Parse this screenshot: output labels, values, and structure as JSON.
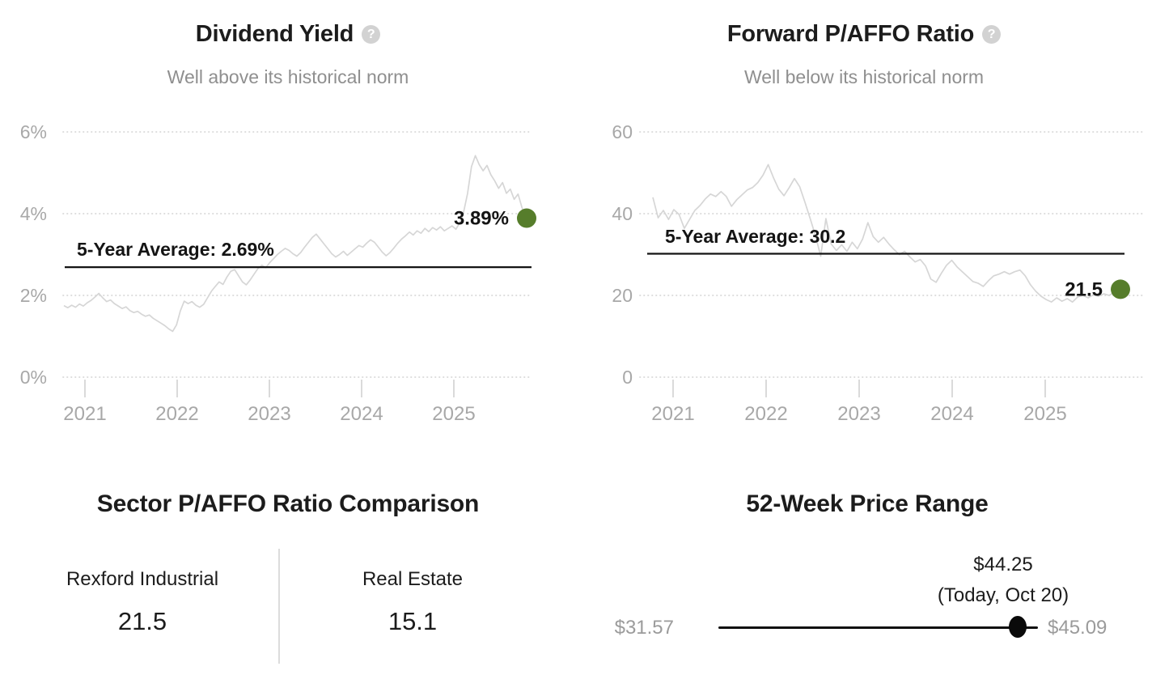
{
  "icons": {
    "help": "?"
  },
  "colors": {
    "accent_green": "#567d2b",
    "series_line": "#d6d6d6",
    "grid_line": "#d7d7d7",
    "axis_text": "#a8a8a8",
    "average_line": "#141414"
  },
  "chart_data": [
    {
      "type": "line",
      "title": "Dividend Yield",
      "subtitle": "Well above its historical norm",
      "x_range": [
        2020.78,
        2025.78
      ],
      "x_tick_labels": [
        "2021",
        "2022",
        "2023",
        "2024",
        "2025"
      ],
      "y_tick_values": [
        0,
        2,
        4,
        6
      ],
      "y_tick_labels": [
        "0%",
        "2%",
        "4%",
        "6%"
      ],
      "ylim": [
        0,
        6.65
      ],
      "grid": "dotted-horizontal",
      "legend": "none",
      "average": {
        "label": "5-Year Average: 2.69%",
        "value": 2.69
      },
      "current": {
        "label": "3.89%",
        "value": 3.89
      },
      "series": [
        {
          "name": "Dividend Yield (%)",
          "values": [
            1.75,
            1.7,
            1.76,
            1.71,
            1.79,
            1.74,
            1.82,
            1.88,
            1.96,
            2.05,
            1.94,
            1.85,
            1.89,
            1.8,
            1.74,
            1.68,
            1.72,
            1.63,
            1.58,
            1.61,
            1.54,
            1.49,
            1.52,
            1.44,
            1.38,
            1.32,
            1.26,
            1.18,
            1.12,
            1.28,
            1.62,
            1.86,
            1.8,
            1.85,
            1.76,
            1.71,
            1.78,
            1.94,
            2.1,
            2.22,
            2.33,
            2.27,
            2.45,
            2.59,
            2.63,
            2.48,
            2.33,
            2.26,
            2.38,
            2.52,
            2.66,
            2.74,
            2.68,
            2.8,
            2.9,
            3.0,
            3.08,
            3.15,
            3.1,
            3.02,
            2.96,
            3.05,
            3.18,
            3.3,
            3.42,
            3.5,
            3.38,
            3.26,
            3.14,
            3.02,
            2.94,
            3.0,
            3.08,
            2.98,
            3.06,
            3.14,
            3.22,
            3.18,
            3.28,
            3.36,
            3.3,
            3.18,
            3.06,
            2.97,
            3.05,
            3.16,
            3.28,
            3.38,
            3.46,
            3.55,
            3.48,
            3.58,
            3.52,
            3.64,
            3.56,
            3.66,
            3.6,
            3.68,
            3.58,
            3.64,
            3.7,
            3.62,
            3.78,
            4.05,
            4.5,
            5.15,
            5.42,
            5.2,
            5.05,
            5.18,
            4.95,
            4.8,
            4.62,
            4.76,
            4.5,
            4.6,
            4.35,
            4.48,
            4.15,
            3.89
          ]
        }
      ]
    },
    {
      "type": "line",
      "title": "Forward P/AFFO Ratio",
      "subtitle": "Well below its historical norm",
      "x_range": [
        2020.78,
        2025.8
      ],
      "x_tick_labels": [
        "2021",
        "2022",
        "2023",
        "2024",
        "2025"
      ],
      "y_tick_values": [
        0,
        20,
        40,
        60
      ],
      "y_tick_labels": [
        "0",
        "20",
        "40",
        "60"
      ],
      "ylim": [
        0,
        66.5
      ],
      "grid": "dotted-horizontal",
      "legend": "none",
      "average": {
        "label": "5-Year Average: 30.2",
        "value": 30.2
      },
      "current": {
        "label": "21.5",
        "value": 21.5
      },
      "series": [
        {
          "name": "Forward P/AFFO Ratio",
          "values": [
            44.0,
            39.0,
            40.8,
            38.6,
            41.0,
            39.8,
            36.4,
            38.6,
            40.8,
            42.0,
            43.6,
            44.8,
            44.2,
            45.4,
            44.2,
            41.8,
            43.4,
            44.6,
            45.8,
            46.4,
            47.6,
            49.4,
            52.0,
            48.8,
            46.0,
            44.4,
            46.4,
            48.6,
            46.6,
            42.8,
            38.8,
            34.6,
            29.6,
            38.8,
            32.6,
            31.0,
            32.4,
            30.8,
            33.0,
            31.4,
            33.8,
            37.8,
            34.4,
            33.0,
            34.2,
            32.6,
            31.2,
            30.0,
            30.8,
            29.4,
            28.2,
            28.8,
            27.2,
            24.0,
            23.2,
            25.4,
            27.4,
            28.6,
            27.0,
            25.8,
            24.6,
            23.4,
            23.0,
            22.2,
            23.6,
            24.8,
            25.2,
            25.8,
            25.2,
            25.8,
            26.2,
            24.8,
            22.6,
            21.0,
            19.8,
            19.0,
            18.4,
            19.4,
            18.6,
            19.2,
            18.4,
            19.6,
            20.0,
            19.4,
            20.2,
            19.8,
            20.4,
            20.0,
            20.8,
            21.5
          ]
        }
      ]
    }
  ],
  "comparison": {
    "title": "Sector P/AFFO Ratio Comparison",
    "columns": [
      {
        "label": "Rexford Industrial",
        "value": "21.5"
      },
      {
        "label": "Real Estate",
        "value": "15.1"
      }
    ]
  },
  "price_range": {
    "title": "52-Week Price Range",
    "low_label": "$31.57",
    "high_label": "$45.09",
    "current_label": "$44.25",
    "current_note": "(Today, Oct 20)",
    "low_value": 31.57,
    "high_value": 45.09,
    "current_value": 44.25
  }
}
